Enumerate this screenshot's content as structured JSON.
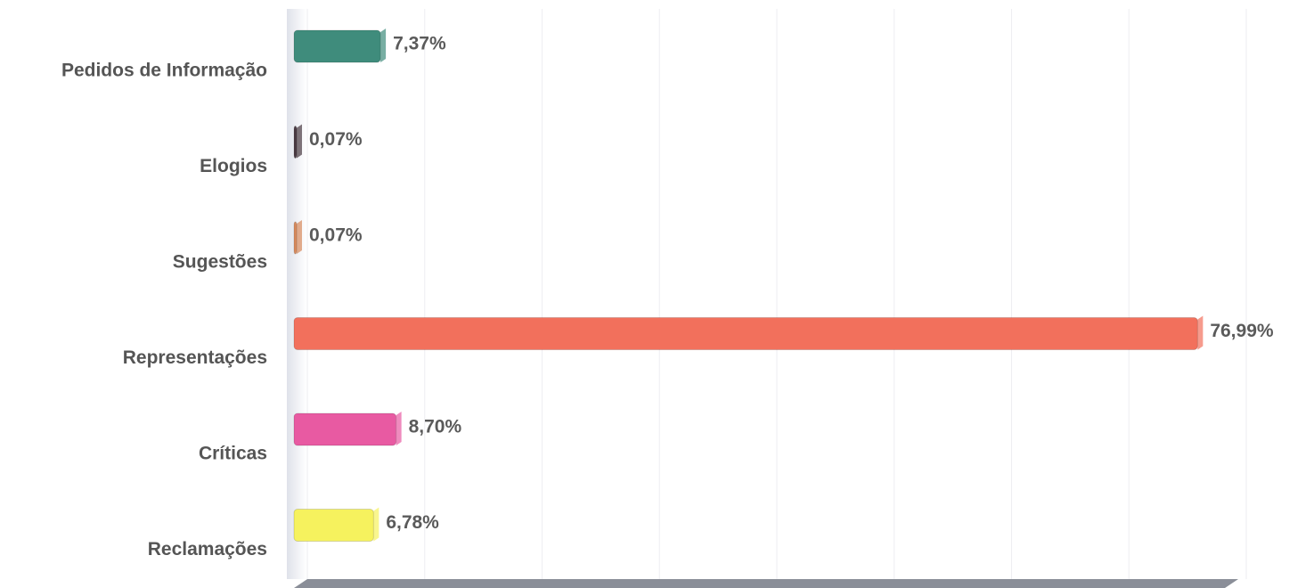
{
  "chart_data": {
    "type": "hbar",
    "categories": [
      "Pedidos de Informação",
      "Elogios",
      "Sugestões",
      "Representações",
      "Críticas",
      "Reclamações"
    ],
    "values": [
      7.37,
      0.07,
      0.07,
      76.99,
      8.7,
      6.78
    ],
    "value_labels": [
      "7,37%",
      "0,07%",
      "0,07%",
      "76,99%",
      "8,70%",
      "6,78%"
    ],
    "colors": [
      "#3f8c7c",
      "#4a3a42",
      "#d98a5c",
      "#f2705c",
      "#e85aa2",
      "#f6f25e"
    ],
    "xlim": [
      0,
      80
    ],
    "xticks": [
      0,
      10,
      20,
      30,
      40,
      50,
      60,
      70,
      80
    ],
    "grid": true
  }
}
